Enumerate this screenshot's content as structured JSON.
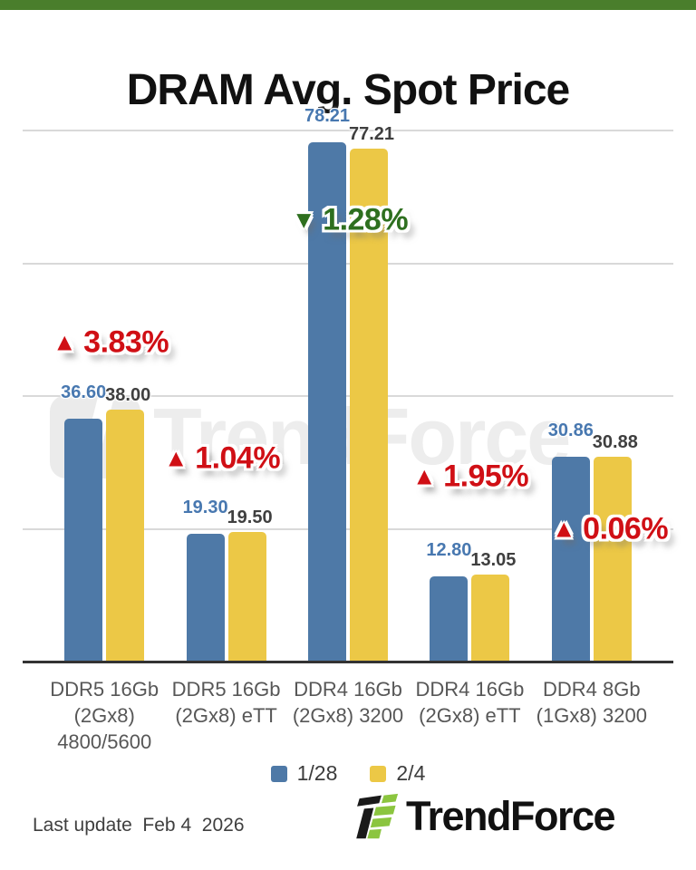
{
  "accent_bar_color": "#4a7e2c",
  "chart_data": {
    "type": "bar",
    "title": "DRAM Avg. Spot Price",
    "categories": [
      "DDR5 16Gb\n(2Gx8)\n4800/5600",
      "DDR5 16Gb\n(2Gx8) eTT",
      "DDR4 16Gb\n(2Gx8) 3200",
      "DDR4 16Gb\n(2Gx8) eTT",
      "DDR4 8Gb\n(1Gx8) 3200"
    ],
    "series": [
      {
        "name": "1/28",
        "color": "#4e79a7",
        "values": [
          36.6,
          19.3,
          78.21,
          12.8,
          30.86
        ]
      },
      {
        "name": "2/4",
        "color": "#ecc846",
        "values": [
          38.0,
          19.5,
          77.21,
          13.05,
          30.88
        ]
      }
    ],
    "change_labels": [
      {
        "direction": "up",
        "value": "3.83%"
      },
      {
        "direction": "up",
        "value": "1.04%"
      },
      {
        "direction": "down",
        "value": "1.28%"
      },
      {
        "direction": "up",
        "value": "1.95%"
      },
      {
        "direction": "up",
        "value": "0.06%"
      }
    ],
    "ylim": [
      0,
      80
    ],
    "gridline_values": [
      20,
      40,
      60,
      80
    ],
    "grid": true,
    "y_axis_tick_labels_visible": false,
    "value_label_decimals": 2,
    "legend_position": "bottom"
  },
  "colors": {
    "up_red": "#d00f15",
    "down_green": "#2e6f1f",
    "value_label_blue": "#4878b0",
    "value_label_dark": "#3f3f3f"
  },
  "watermark": {
    "text": "TrendForce"
  },
  "footer": {
    "last_update": "Last update  Feb 4  2026",
    "brand": "TrendForce"
  }
}
